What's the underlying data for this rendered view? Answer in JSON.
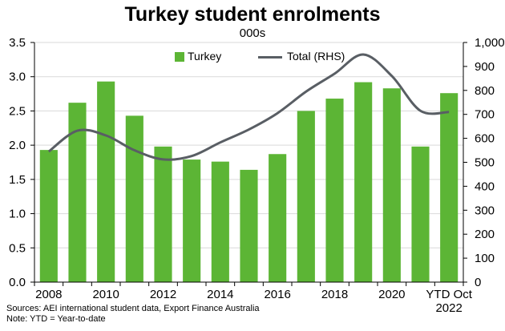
{
  "chart_data": {
    "type": "bar",
    "title": "Turkey student enrolments",
    "subtitle": "000s",
    "categories": [
      "2008",
      "2009",
      "2010",
      "2011",
      "2012",
      "2013",
      "2014",
      "2015",
      "2016",
      "2017",
      "2018",
      "2019",
      "2020",
      "2021",
      "YTD Oct 2022"
    ],
    "x_tick_labels": [
      "2008",
      "",
      "2010",
      "",
      "2012",
      "",
      "2014",
      "",
      "2016",
      "",
      "2018",
      "",
      "2020",
      "",
      "YTD Oct\n2022"
    ],
    "series": [
      {
        "name": "Turkey",
        "type": "bar",
        "axis": "left",
        "color": "#5cb535",
        "values": [
          1.93,
          2.62,
          2.93,
          2.43,
          1.98,
          1.79,
          1.76,
          1.64,
          1.87,
          2.5,
          2.68,
          2.92,
          2.83,
          1.98,
          2.76
        ]
      },
      {
        "name": "Total (RHS)",
        "type": "line",
        "axis": "right",
        "color": "#595e64",
        "values": [
          545,
          632,
          612,
          550,
          512,
          526,
          583,
          637,
          705,
          795,
          870,
          950,
          860,
          715,
          710
        ]
      }
    ],
    "yaxis_left": {
      "min": 0,
      "max": 3.5,
      "step": 0.5,
      "tick_labels": [
        "0.0",
        "0.5",
        "1.0",
        "1.5",
        "2.0",
        "2.5",
        "3.0",
        "3.5"
      ]
    },
    "yaxis_right": {
      "min": 0,
      "max": 1000,
      "step": 100,
      "tick_labels": [
        "0",
        "100",
        "200",
        "300",
        "400",
        "500",
        "600",
        "700",
        "800",
        "900",
        "1,000"
      ]
    },
    "grid": true,
    "legend_position": "top-center"
  },
  "notes": {
    "sources": "Sources: AEI international student data, Export Finance Australia",
    "note": "Note: YTD = Year-to-date"
  }
}
